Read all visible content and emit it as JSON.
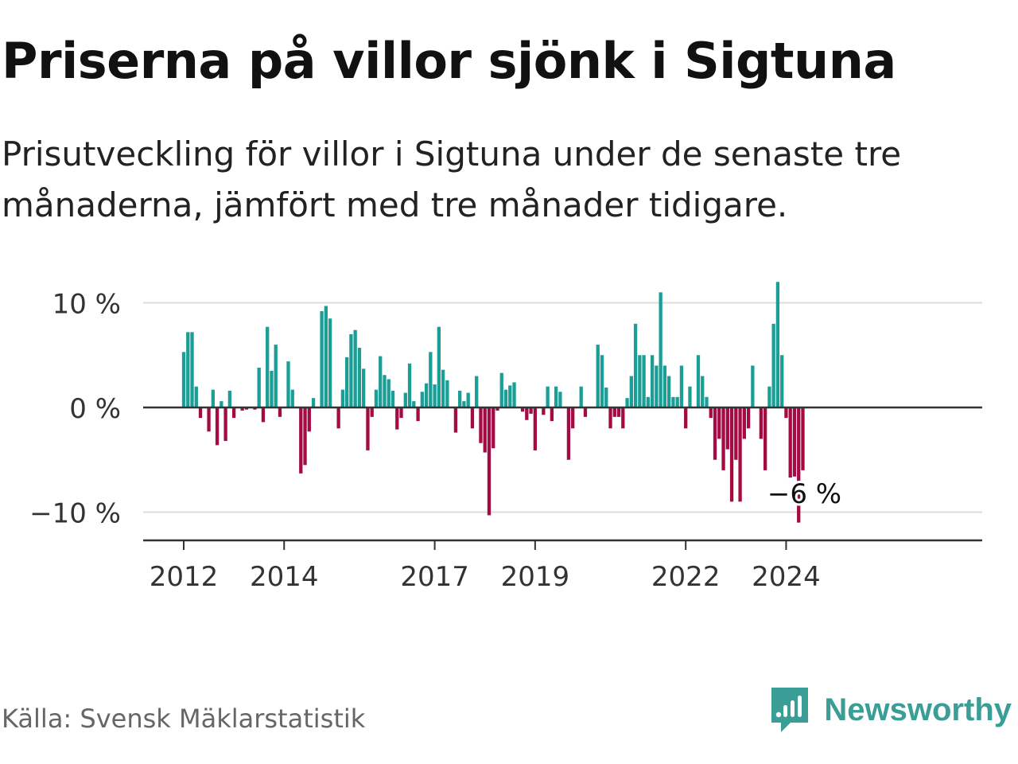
{
  "title": "Priserna på villor sjönk i Sigtuna",
  "subtitle": "Prisutveckling för villor i Sigtuna under de senaste tre månaderna, jämfört med tre månader tidigare.",
  "source": "Källa: Svensk Mäklarstatistik",
  "brand": "Newsworthy",
  "colors": {
    "positive": "#1a9e96",
    "negative": "#a50b43",
    "axis": "#333333",
    "grid": "#dddddd",
    "brand": "#3a9e97"
  },
  "chart_data": {
    "type": "bar",
    "title": "Priserna på villor sjönk i Sigtuna",
    "xlabel": "",
    "ylabel": "",
    "ylim": [
      -13,
      14
    ],
    "x_start": 2012.0,
    "x_step_months": 1,
    "y_ticks": [
      {
        "value": 10,
        "label": "10 %"
      },
      {
        "value": 0,
        "label": "0 %"
      },
      {
        "value": -10,
        "label": "−10 %"
      }
    ],
    "x_ticks": [
      {
        "value": 2012,
        "label": "2012"
      },
      {
        "value": 2014,
        "label": "2014"
      },
      {
        "value": 2017,
        "label": "2017"
      },
      {
        "value": 2019,
        "label": "2019"
      },
      {
        "value": 2022,
        "label": "2022"
      },
      {
        "value": 2024,
        "label": "2024"
      }
    ],
    "annotation": {
      "label": "−6 %",
      "value": -6
    },
    "values": [
      5.3,
      7.2,
      7.2,
      2.0,
      -1.0,
      0,
      -2.3,
      1.7,
      -3.6,
      0.6,
      -3.2,
      1.6,
      -1.0,
      0,
      -0.3,
      -0.2,
      0,
      -0.2,
      3.8,
      -1.4,
      7.7,
      3.5,
      6.0,
      -0.9,
      0,
      4.4,
      1.7,
      0,
      -6.3,
      -5.5,
      -2.3,
      0.9,
      0,
      9.2,
      9.7,
      8.5,
      0,
      -2.0,
      1.7,
      4.8,
      7.0,
      7.4,
      5.7,
      3.7,
      -4.1,
      -0.9,
      1.7,
      4.9,
      3.1,
      2.7,
      1.6,
      -2.1,
      -1.0,
      1.4,
      4.2,
      0.6,
      -1.3,
      1.5,
      2.3,
      5.3,
      2.2,
      7.7,
      3.6,
      2.6,
      0,
      -2.4,
      1.6,
      0.6,
      1.4,
      -2.0,
      3.0,
      -3.4,
      -4.3,
      -10.3,
      -3.9,
      -0.3,
      3.3,
      1.7,
      2.1,
      2.4,
      0,
      -0.4,
      -1.2,
      -0.6,
      -4.1,
      0,
      -0.7,
      2.0,
      -1.3,
      2.0,
      1.5,
      0,
      -5.0,
      -2.0,
      0,
      2.0,
      -0.9,
      0,
      0,
      6.0,
      5.0,
      1.9,
      -2.0,
      -0.9,
      -0.9,
      -2.0,
      0.9,
      3.0,
      8.0,
      5.0,
      5.0,
      1.0,
      5.0,
      4.0,
      11.0,
      4.0,
      3.0,
      1.0,
      1.0,
      4.0,
      -2.0,
      2.0,
      0,
      5.0,
      3.0,
      1.0,
      -1.0,
      -5.0,
      -3.0,
      -6.0,
      -4.0,
      -9.0,
      -5.0,
      -9.0,
      -3.0,
      -2.0,
      4.0,
      0,
      -3.0,
      -6.0,
      2.0,
      8.0,
      12.0,
      5.0,
      -1.0,
      -6.7,
      -6.6,
      -11.0,
      -6.0
    ]
  }
}
